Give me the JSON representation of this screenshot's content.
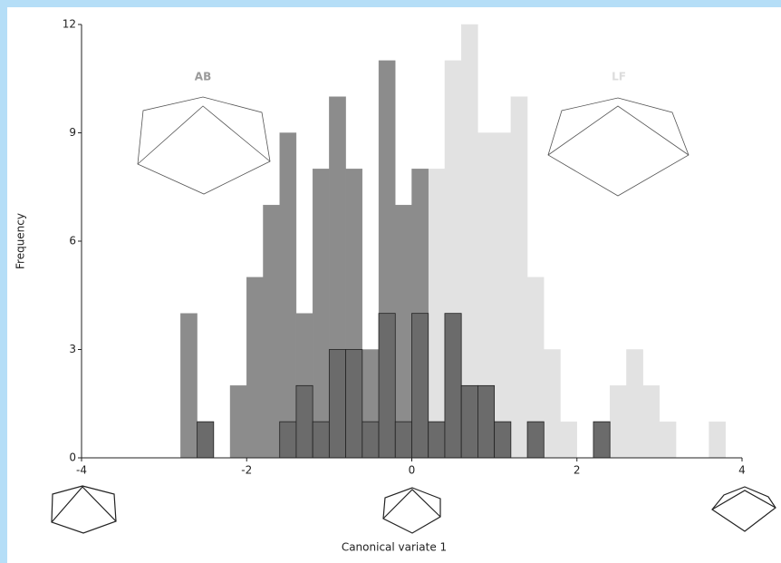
{
  "chart_data": {
    "type": "histogram",
    "x_label": "Canonical variate 1",
    "y_label": "Frequency",
    "bins": [
      -2.8,
      -2.6,
      -2.4,
      -2.2,
      -2.0,
      -1.8,
      -1.6,
      -1.4,
      -1.2,
      -1.0,
      -0.8,
      -0.6,
      -0.4,
      -0.2,
      0.0,
      0.2,
      0.4,
      0.6,
      0.8,
      1.0,
      1.2,
      1.4,
      1.6,
      1.8,
      2.0,
      2.2,
      2.4,
      2.6,
      2.8,
      3.0,
      3.2,
      3.4,
      3.6,
      3.8
    ],
    "series": [
      {
        "name": "LF",
        "color": "#e2e2e2",
        "values": [
          0,
          0,
          0,
          0,
          0,
          0,
          0,
          0,
          0,
          0,
          0,
          0,
          0,
          0,
          0,
          8,
          11,
          12,
          9,
          9,
          10,
          5,
          3,
          1,
          0,
          0,
          2,
          3,
          2,
          1,
          0,
          0,
          1
        ]
      },
      {
        "name": "AB",
        "color": "#8c8c8c",
        "values": [
          4,
          0,
          0,
          2,
          5,
          7,
          9,
          4,
          8,
          10,
          8,
          3,
          11,
          7,
          8,
          0,
          0,
          0,
          0,
          0,
          0,
          0,
          0,
          0,
          0,
          0,
          0,
          0,
          0,
          0,
          0,
          0,
          0
        ]
      },
      {
        "color": "#6b6b6b",
        "values": [
          0,
          1,
          0,
          0,
          0,
          0,
          1,
          2,
          1,
          3,
          3,
          1,
          4,
          1,
          4,
          1,
          4,
          2,
          2,
          1,
          0,
          1,
          0,
          0,
          0,
          1,
          0,
          0,
          0,
          0,
          0,
          0,
          0
        ]
      }
    ],
    "xlim": [
      -4,
      4
    ],
    "xticks": [
      -4,
      -2,
      0,
      2,
      4
    ],
    "ylim": [
      0,
      12
    ],
    "yticks": [
      0,
      3,
      6,
      9,
      12
    ]
  }
}
